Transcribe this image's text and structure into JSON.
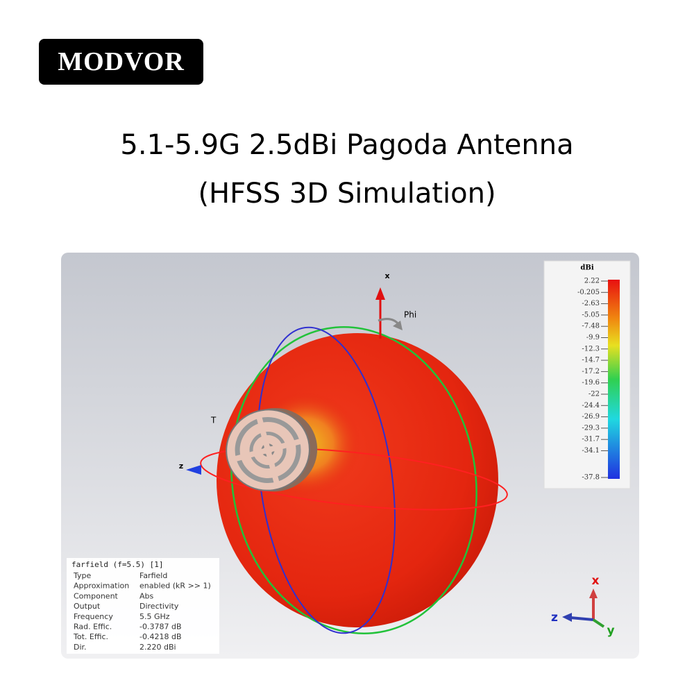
{
  "brand": "MODVOR",
  "title": {
    "line1": "5.1-5.9G 2.5dBi Pagoda Antenna",
    "line2": "(HFSS 3D Simulation)"
  },
  "simulation": {
    "axis_labels": {
      "x": "x",
      "phi": "Phi",
      "theta": "T",
      "z": "z"
    },
    "colorbar": {
      "unit": "dBi",
      "ticks": [
        "2.22",
        "-0.205",
        "-2.63",
        "-5.05",
        "-7.48",
        "-9.9",
        "-12.3",
        "-14.7",
        "-17.2",
        "-19.6",
        "-22",
        "-24.4",
        "-26.9",
        "-29.3",
        "-31.7",
        "-34.1",
        "-37.8"
      ]
    },
    "info": {
      "header": "farfield (f=5.5) [1]",
      "rows": [
        [
          "Type",
          "Farfield"
        ],
        [
          "Approximation",
          "enabled (kR >> 1)"
        ],
        [
          "Component",
          "Abs"
        ],
        [
          "Output",
          "Directivity"
        ],
        [
          "Frequency",
          "5.5 GHz"
        ],
        [
          "Rad. Effic.",
          "-0.3787 dB"
        ],
        [
          "Tot. Effic.",
          "-0.4218 dB"
        ],
        [
          "Dir.",
          "2.220 dBi"
        ]
      ]
    },
    "triad": {
      "x": "x",
      "z": "z",
      "y": "y"
    }
  }
}
